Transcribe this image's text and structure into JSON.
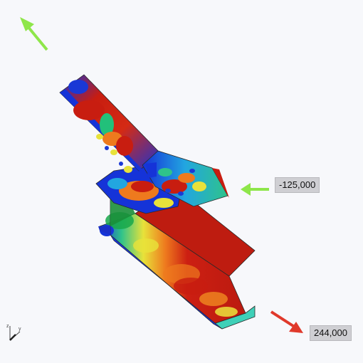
{
  "loads": [
    {
      "label": "-125,000",
      "color": "#8ee64a"
    },
    {
      "label": "244,000",
      "color": "#e0392b"
    }
  ],
  "axis_triad": {
    "labels": [
      "z",
      "y"
    ]
  },
  "colors": {
    "background": "#f7f8fb",
    "stress_low": "#1530d8",
    "stress_mid": "#22c07a",
    "stress_high": "#c81d10"
  }
}
